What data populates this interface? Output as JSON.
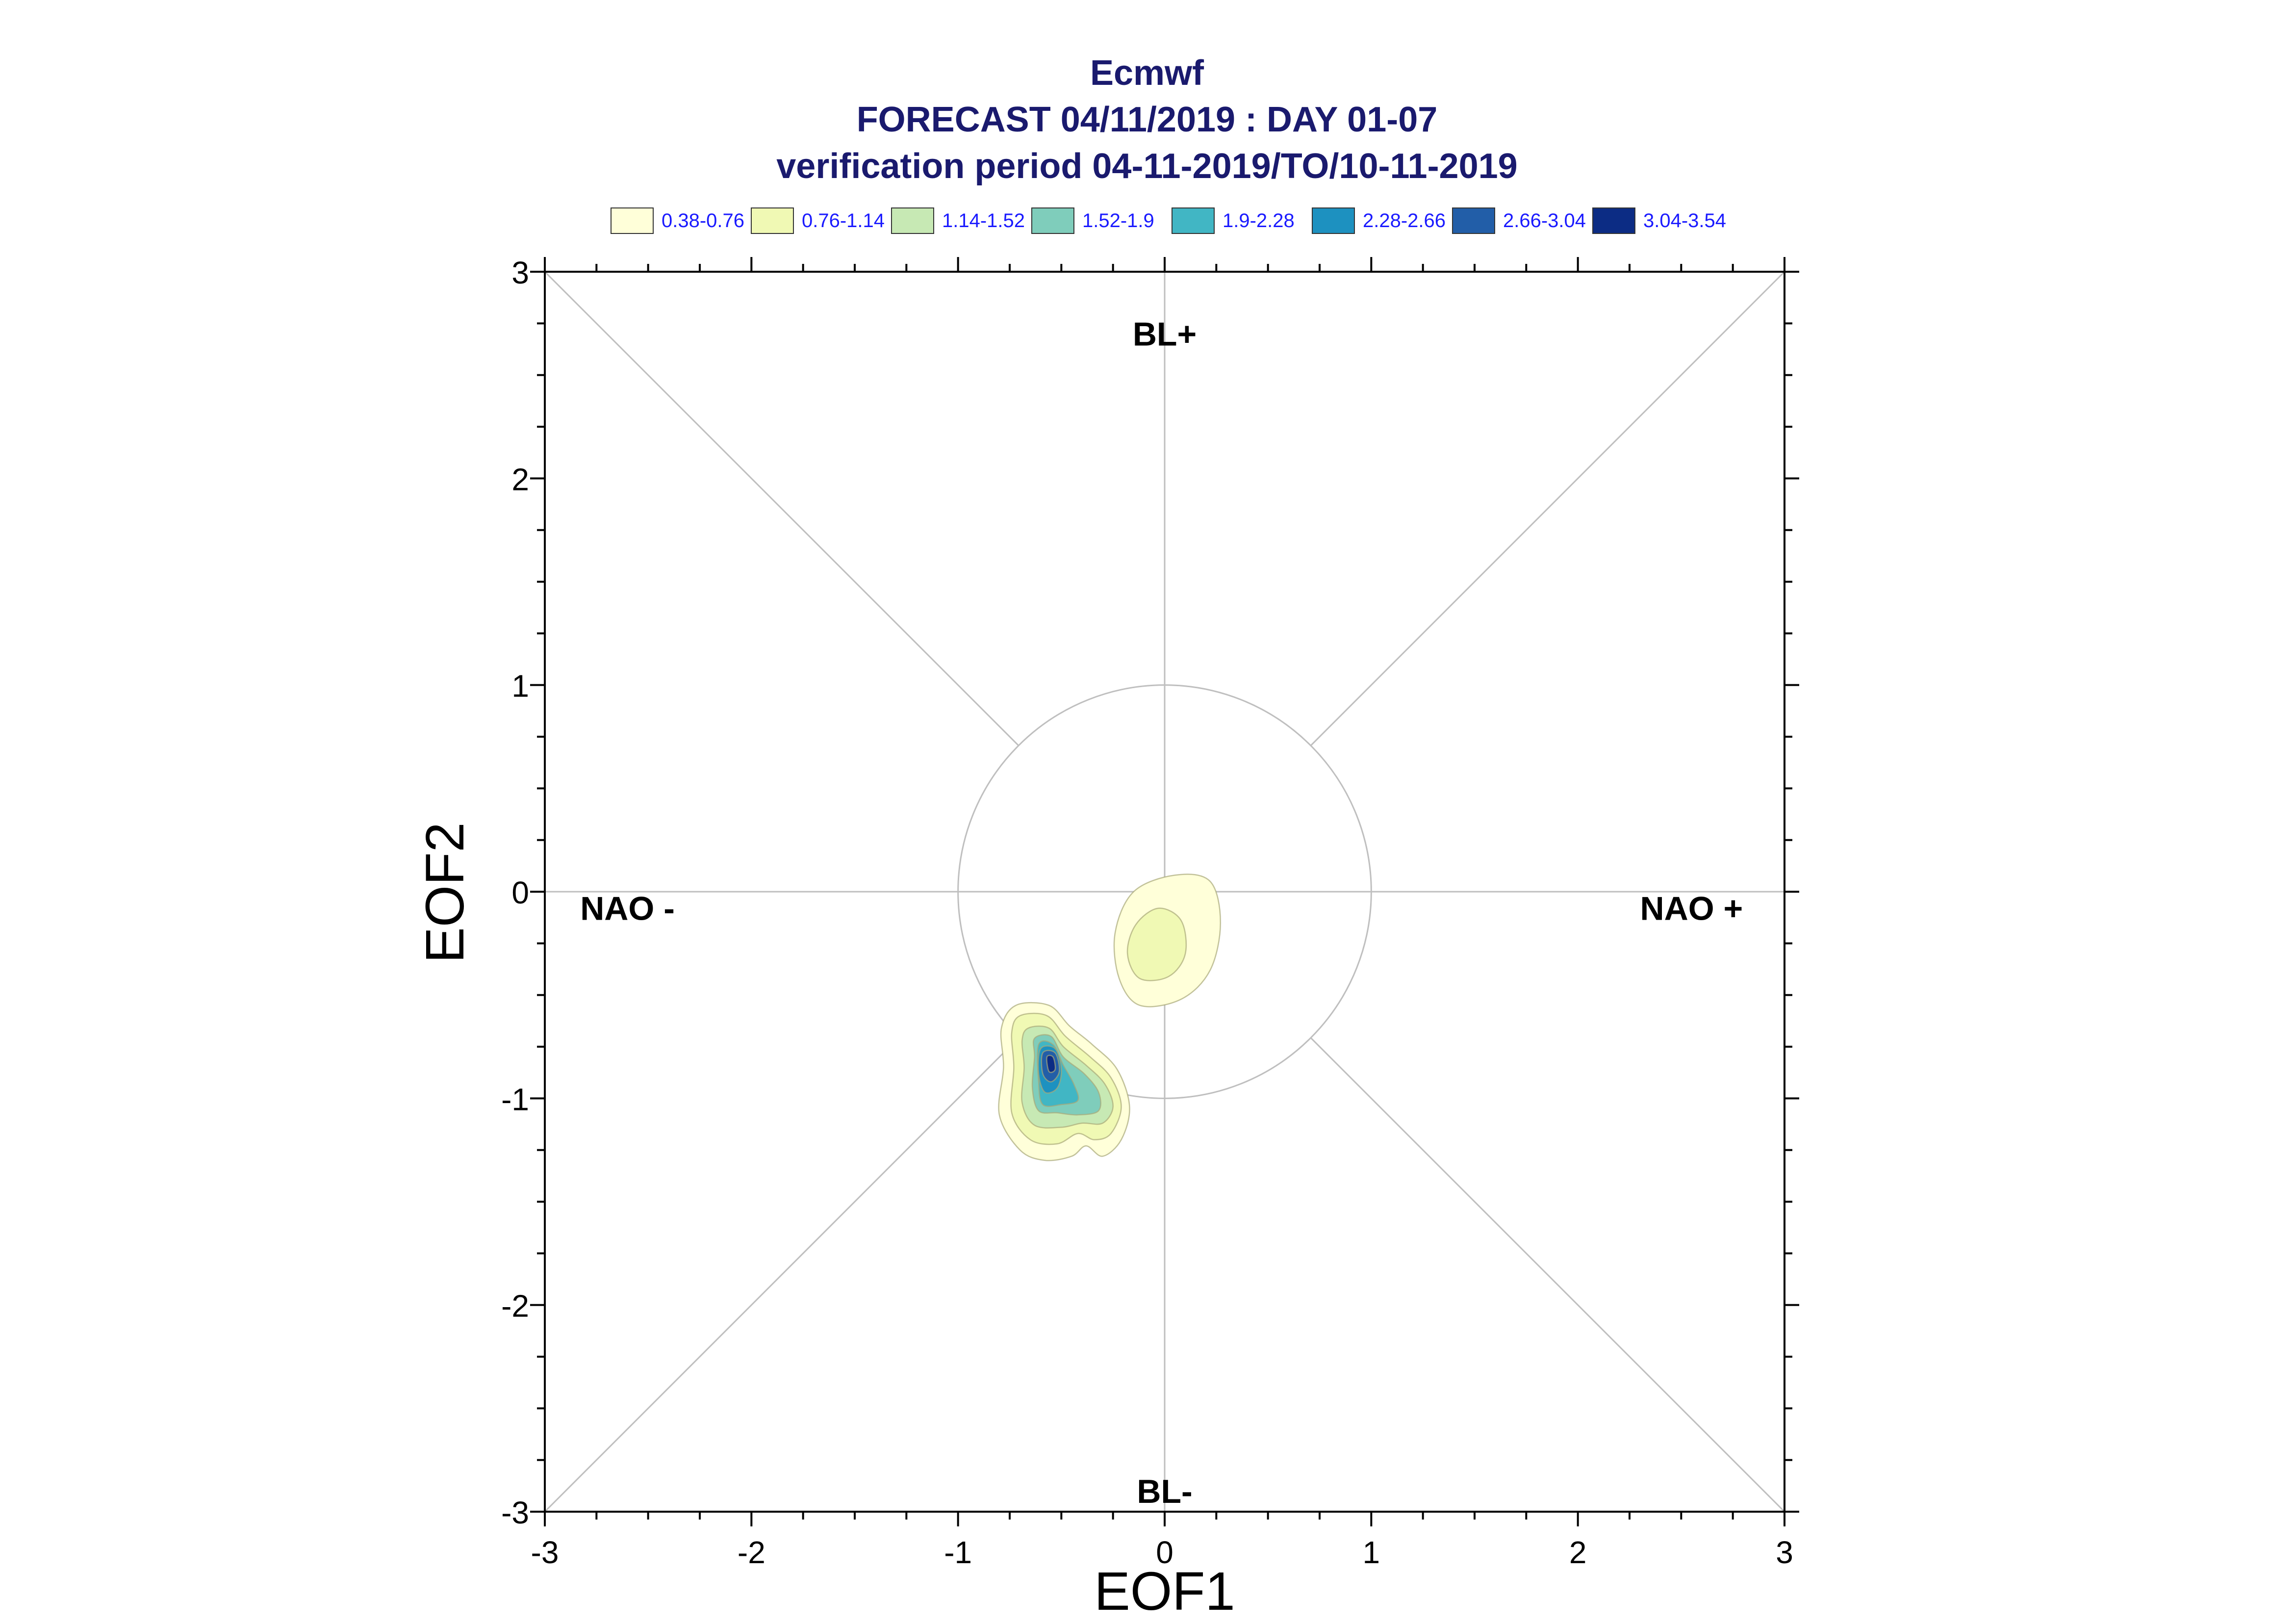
{
  "chart_data": {
    "type": "contour",
    "title": "Ecmwf",
    "subtitle_1": "FORECAST 04/11/2019 : DAY 01-07",
    "subtitle_2": "verification period 04-11-2019/TO/10-11-2019",
    "xlabel": "EOF1",
    "ylabel": "EOF2",
    "xlim": [
      -3,
      3
    ],
    "ylim": [
      -3,
      3
    ],
    "x_ticks": [
      "-3",
      "-2",
      "-1",
      "0",
      "1",
      "2",
      "3"
    ],
    "y_ticks": [
      "3",
      "2",
      "1",
      "0",
      "-1",
      "-2",
      "-3"
    ],
    "x_tick_values": [
      -3,
      -2,
      -1,
      0,
      1,
      2,
      3
    ],
    "y_tick_values": [
      3,
      2,
      1,
      0,
      -1,
      -2,
      -3
    ],
    "grid": false,
    "reference_circle_radius": 1,
    "legend_placement": "top",
    "legend": [
      {
        "label": "0.38-0.76",
        "color": "#ffffd9"
      },
      {
        "label": "0.76-1.14",
        "color": "#f0f9b4"
      },
      {
        "label": "1.14-1.52",
        "color": "#c7e9b4"
      },
      {
        "label": "1.52-1.9",
        "color": "#7fcdbb"
      },
      {
        "label": "1.9-2.28",
        "color": "#41b6c4"
      },
      {
        "label": "2.28-2.66",
        "color": "#1d91c0"
      },
      {
        "label": "2.66-3.04",
        "color": "#225ea8"
      },
      {
        "label": "3.04-3.54",
        "color": "#0c2c84"
      }
    ],
    "regime_labels": [
      {
        "text": "BL+",
        "x": 0,
        "y": 2.7
      },
      {
        "text": "BL-",
        "x": 0,
        "y": -2.9
      },
      {
        "text": "NAO -",
        "x": -2.6,
        "y": -0.08
      },
      {
        "text": "NAO +",
        "x": 2.55,
        "y": -0.08
      }
    ],
    "density_blobs": [
      {
        "name": "upper-blob",
        "levels": [
          {
            "level": 0,
            "points": [
              [
                0.05,
                0.08
              ],
              [
                0.22,
                0.05
              ],
              [
                0.27,
                -0.15
              ],
              [
                0.22,
                -0.38
              ],
              [
                0.08,
                -0.52
              ],
              [
                -0.12,
                -0.55
              ],
              [
                -0.22,
                -0.42
              ],
              [
                -0.24,
                -0.2
              ],
              [
                -0.15,
                0.0
              ]
            ]
          },
          {
            "level": 1,
            "points": [
              [
                -0.03,
                -0.08
              ],
              [
                0.08,
                -0.14
              ],
              [
                0.1,
                -0.3
              ],
              [
                0.02,
                -0.41
              ],
              [
                -0.12,
                -0.42
              ],
              [
                -0.18,
                -0.3
              ],
              [
                -0.14,
                -0.16
              ]
            ]
          }
        ]
      },
      {
        "name": "lower-blob",
        "levels": [
          {
            "level": 0,
            "points": [
              [
                -0.72,
                -0.55
              ],
              [
                -0.56,
                -0.55
              ],
              [
                -0.46,
                -0.65
              ],
              [
                -0.35,
                -0.74
              ],
              [
                -0.23,
                -0.86
              ],
              [
                -0.17,
                -1.04
              ],
              [
                -0.21,
                -1.2
              ],
              [
                -0.3,
                -1.28
              ],
              [
                -0.38,
                -1.23
              ],
              [
                -0.45,
                -1.28
              ],
              [
                -0.58,
                -1.3
              ],
              [
                -0.7,
                -1.25
              ],
              [
                -0.8,
                -1.08
              ],
              [
                -0.78,
                -0.85
              ],
              [
                -0.79,
                -0.66
              ]
            ]
          },
          {
            "level": 1,
            "points": [
              [
                -0.7,
                -0.6
              ],
              [
                -0.57,
                -0.6
              ],
              [
                -0.48,
                -0.7
              ],
              [
                -0.36,
                -0.8
              ],
              [
                -0.26,
                -0.9
              ],
              [
                -0.21,
                -1.04
              ],
              [
                -0.26,
                -1.17
              ],
              [
                -0.34,
                -1.2
              ],
              [
                -0.42,
                -1.17
              ],
              [
                -0.52,
                -1.22
              ],
              [
                -0.65,
                -1.2
              ],
              [
                -0.74,
                -1.07
              ],
              [
                -0.73,
                -0.85
              ],
              [
                -0.74,
                -0.68
              ]
            ]
          },
          {
            "level": 2,
            "points": [
              [
                -0.66,
                -0.66
              ],
              [
                -0.56,
                -0.66
              ],
              [
                -0.49,
                -0.75
              ],
              [
                -0.38,
                -0.84
              ],
              [
                -0.29,
                -0.93
              ],
              [
                -0.25,
                -1.04
              ],
              [
                -0.3,
                -1.12
              ],
              [
                -0.4,
                -1.12
              ],
              [
                -0.5,
                -1.14
              ],
              [
                -0.63,
                -1.13
              ],
              [
                -0.69,
                -1.02
              ],
              [
                -0.68,
                -0.85
              ],
              [
                -0.69,
                -0.72
              ]
            ]
          },
          {
            "level": 3,
            "points": [
              [
                -0.63,
                -0.71
              ],
              [
                -0.55,
                -0.7
              ],
              [
                -0.49,
                -0.8
              ],
              [
                -0.39,
                -0.88
              ],
              [
                -0.32,
                -0.97
              ],
              [
                -0.32,
                -1.06
              ],
              [
                -0.42,
                -1.08
              ],
              [
                -0.52,
                -1.07
              ],
              [
                -0.61,
                -1.06
              ],
              [
                -0.64,
                -0.95
              ],
              [
                -0.63,
                -0.8
              ]
            ]
          },
          {
            "level": 4,
            "points": [
              [
                -0.61,
                -0.74
              ],
              [
                -0.54,
                -0.74
              ],
              [
                -0.49,
                -0.84
              ],
              [
                -0.44,
                -0.93
              ],
              [
                -0.42,
                -1.01
              ],
              [
                -0.5,
                -1.03
              ],
              [
                -0.59,
                -1.03
              ],
              [
                -0.61,
                -0.92
              ]
            ]
          },
          {
            "level": 5,
            "points": [
              [
                -0.6,
                -0.76
              ],
              [
                -0.53,
                -0.76
              ],
              [
                -0.5,
                -0.86
              ],
              [
                -0.52,
                -0.95
              ],
              [
                -0.58,
                -0.97
              ],
              [
                -0.61,
                -0.88
              ]
            ]
          },
          {
            "level": 6,
            "points": [
              [
                -0.59,
                -0.78
              ],
              [
                -0.53,
                -0.78
              ],
              [
                -0.51,
                -0.87
              ],
              [
                -0.55,
                -0.92
              ],
              [
                -0.59,
                -0.88
              ]
            ]
          },
          {
            "level": 7,
            "points": [
              [
                -0.57,
                -0.8
              ],
              [
                -0.54,
                -0.8
              ],
              [
                -0.53,
                -0.86
              ],
              [
                -0.56,
                -0.87
              ]
            ]
          }
        ]
      }
    ]
  }
}
